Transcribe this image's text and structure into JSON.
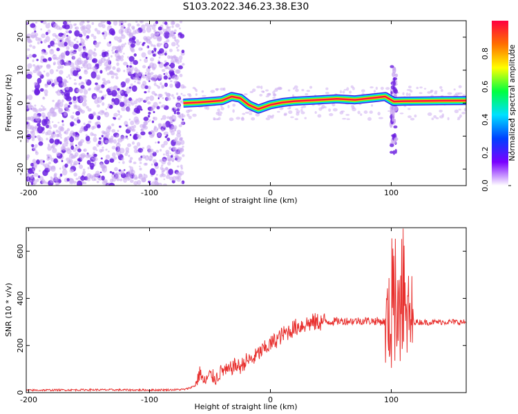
{
  "title": "S103.2022.346.23.38.E30",
  "colors": {
    "snr_line": "#e8302e",
    "speckle_light": "#c9a8f0",
    "speckle_dark": "#6a1ee0",
    "axes": "#000000"
  },
  "chart_data": [
    {
      "type": "heatmap",
      "title": "",
      "xlabel": "Height of straight line (km)",
      "ylabel": "Frequency (Hz)",
      "xlim": [
        -202,
        162
      ],
      "ylim": [
        -25,
        25
      ],
      "x_ticks": [
        -200,
        -100,
        0,
        100
      ],
      "y_ticks": [
        20,
        10,
        0,
        -10,
        -20
      ],
      "grid": false,
      "colorbar": {
        "label": "Normalized spectral amplitude",
        "range": [
          0,
          1
        ],
        "ticks": [
          "0.0",
          "0.2",
          "0.4",
          "0.6",
          "0.8"
        ],
        "colormap": [
          "#ffffff",
          "#7a00ff",
          "#0040ff",
          "#00e0ff",
          "#00ff40",
          "#ffff00",
          "#ff7000",
          "#ff0040"
        ]
      },
      "features": {
        "noise_region_x": [
          -202,
          -72
        ],
        "signal_track": [
          {
            "x": -72,
            "y": 0.0
          },
          {
            "x": -60,
            "y": 0.2
          },
          {
            "x": -50,
            "y": 0.5
          },
          {
            "x": -40,
            "y": 0.8
          },
          {
            "x": -32,
            "y": 2.0
          },
          {
            "x": -25,
            "y": 1.5
          },
          {
            "x": -18,
            "y": -0.5
          },
          {
            "x": -10,
            "y": -1.8
          },
          {
            "x": 0,
            "y": -0.5
          },
          {
            "x": 10,
            "y": 0.2
          },
          {
            "x": 20,
            "y": 0.6
          },
          {
            "x": 35,
            "y": 0.9
          },
          {
            "x": 55,
            "y": 1.3
          },
          {
            "x": 70,
            "y": 1.0
          },
          {
            "x": 85,
            "y": 1.6
          },
          {
            "x": 95,
            "y": 2.0
          },
          {
            "x": 102,
            "y": 0.5
          },
          {
            "x": 110,
            "y": 0.6
          },
          {
            "x": 130,
            "y": 0.7
          },
          {
            "x": 162,
            "y": 0.8
          }
        ],
        "burst_x": 102,
        "burst_y_range": [
          -15,
          12
        ]
      }
    },
    {
      "type": "line",
      "title": "",
      "xlabel": "Height of straight line (km)",
      "ylabel": "SNR (10 * v/v)",
      "xlim": [
        -202,
        162
      ],
      "ylim": [
        0,
        700
      ],
      "x_ticks": [
        -200,
        -100,
        0,
        100
      ],
      "y_ticks": [
        0,
        200,
        400,
        600
      ],
      "grid": false,
      "series": [
        {
          "points": [
            [
              -202,
              10
            ],
            [
              -150,
              12
            ],
            [
              -100,
              11
            ],
            [
              -80,
              12
            ],
            [
              -70,
              14
            ],
            [
              -62,
              30
            ],
            [
              -58,
              90
            ],
            [
              -55,
              40
            ],
            [
              -50,
              75
            ],
            [
              -45,
              60
            ],
            [
              -40,
              95
            ],
            [
              -35,
              90
            ],
            [
              -30,
              115
            ],
            [
              -25,
              110
            ],
            [
              -20,
              135
            ],
            [
              -15,
              140
            ],
            [
              -10,
              165
            ],
            [
              -5,
              185
            ],
            [
              0,
              205
            ],
            [
              5,
              225
            ],
            [
              10,
              245
            ],
            [
              15,
              260
            ],
            [
              20,
              275
            ],
            [
              25,
              285
            ],
            [
              30,
              292
            ],
            [
              35,
              297
            ],
            [
              40,
              300
            ],
            [
              50,
              302
            ],
            [
              60,
              304
            ],
            [
              70,
              304
            ],
            [
              80,
              305
            ],
            [
              90,
              303
            ],
            [
              95,
              300
            ],
            [
              100,
              290
            ],
            [
              105,
              280
            ],
            [
              110,
              300
            ],
            [
              115,
              310
            ],
            [
              120,
              300
            ],
            [
              130,
              298
            ],
            [
              140,
              300
            ],
            [
              150,
              300
            ],
            [
              162,
              298
            ]
          ]
        }
      ]
    }
  ]
}
